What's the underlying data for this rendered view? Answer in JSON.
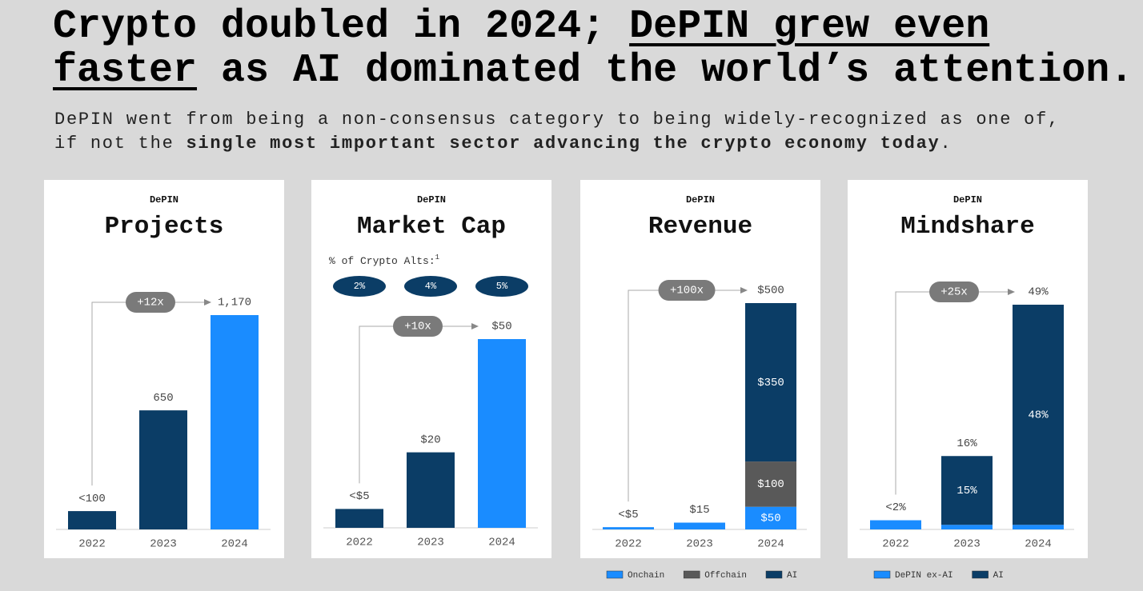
{
  "title": {
    "parts": [
      "Crypto doubled in 2024; ",
      "DePIN grew even faster",
      " as AI dominated the world’s attention."
    ]
  },
  "subtitle": {
    "line1": "DePIN went from being a non-consensus category to being widely-recognized as one of,",
    "line2": "if not the ",
    "line2_bold": "single most important sector advancing the crypto economy today",
    "line2_end": "."
  },
  "chart_data": [
    {
      "type": "bar",
      "eyebrow": "DePIN",
      "title": "Projects",
      "categories": [
        "2022",
        "2023",
        "2024"
      ],
      "values": [
        100,
        650,
        1170
      ],
      "value_labels": [
        "<100",
        "650",
        "1,170"
      ],
      "colors": [
        "#0b3d66",
        "#0b3d66",
        "#1a8cff"
      ],
      "ylim": [
        0,
        1170
      ],
      "growth": "+12x"
    },
    {
      "type": "bar",
      "eyebrow": "DePIN",
      "title": "Market Cap",
      "categories": [
        "2022",
        "2023",
        "2024"
      ],
      "values": [
        5,
        20,
        50
      ],
      "value_labels": [
        "<$5",
        "$20",
        "$50"
      ],
      "colors": [
        "#0b3d66",
        "#0b3d66",
        "#1a8cff"
      ],
      "ylim": [
        0,
        50
      ],
      "growth": "+10x",
      "share_label": "% of Crypto Alts:",
      "share_note": "1",
      "shares": [
        2,
        4,
        5
      ],
      "share_labels": [
        "2%",
        "4%",
        "5%"
      ]
    },
    {
      "type": "stacked_bar",
      "eyebrow": "DePIN",
      "title": "Revenue",
      "categories": [
        "2022",
        "2023",
        "2024"
      ],
      "series": [
        {
          "name": "Onchain",
          "color": "#1a8cff",
          "values": [
            5,
            15,
            50
          ],
          "value_labels": [
            "<$5",
            "$15",
            "$50"
          ]
        },
        {
          "name": "Offchain",
          "color": "#595959",
          "values": [
            null,
            null,
            100
          ],
          "value_labels": [
            null,
            null,
            "$100"
          ]
        },
        {
          "name": "AI",
          "color": "#0b3d66",
          "values": [
            null,
            null,
            350
          ],
          "value_labels": [
            null,
            null,
            "$350"
          ]
        }
      ],
      "totals": [
        null,
        null,
        500
      ],
      "total_labels": [
        null,
        null,
        "$500"
      ],
      "ylim": [
        0,
        500
      ],
      "growth": "+100x"
    },
    {
      "type": "stacked_bar",
      "eyebrow": "DePIN",
      "title": "Mindshare",
      "categories": [
        "2022",
        "2023",
        "2024"
      ],
      "series": [
        {
          "name": "DePIN ex-AI",
          "color": "#1a8cff",
          "values": [
            2,
            1,
            1
          ],
          "value_labels": [
            "<2%",
            null,
            null
          ]
        },
        {
          "name": "AI",
          "color": "#0b3d66",
          "values": [
            null,
            15,
            48
          ],
          "value_labels": [
            null,
            "15%",
            "48%"
          ]
        }
      ],
      "totals": [
        null,
        16,
        49
      ],
      "total_labels": [
        null,
        "16%",
        "49%"
      ],
      "ylim": [
        0,
        49
      ],
      "growth": "+25x"
    }
  ]
}
